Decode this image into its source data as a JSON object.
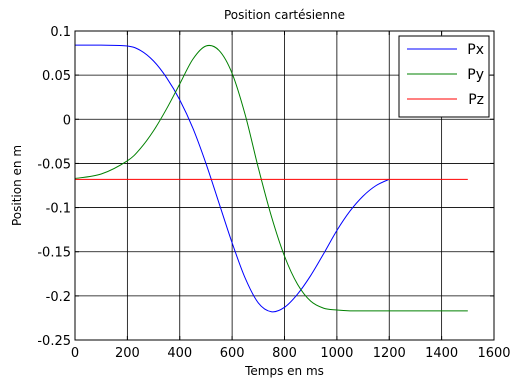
{
  "chart_data": {
    "type": "line",
    "title": "Position cartésienne",
    "xlabel": "Temps en ms",
    "ylabel": "Position en m",
    "xlim": [
      0,
      1600
    ],
    "ylim": [
      -0.25,
      0.1
    ],
    "grid": true,
    "legend_position": "top-right",
    "x_ticks": [
      0,
      200,
      400,
      600,
      800,
      1000,
      1200,
      1400,
      1600
    ],
    "x_tick_labels": [
      "0",
      "200",
      "400",
      "600",
      "800",
      "1000",
      "1200",
      "1400",
      "1600"
    ],
    "y_ticks": [
      0.1,
      0.05,
      0,
      -0.05,
      -0.1,
      -0.15,
      -0.2,
      -0.25
    ],
    "y_tick_labels": [
      "0.1",
      "0.05",
      "0",
      "-0.05",
      "-0.1",
      "-0.15",
      "-0.2",
      "-0.25"
    ],
    "x": [
      0,
      100,
      200,
      250,
      300,
      350,
      400,
      450,
      500,
      550,
      600,
      650,
      700,
      750,
      800,
      850,
      900,
      950,
      1000,
      1050,
      1100,
      1150,
      1200,
      1300,
      1400,
      1500
    ],
    "series": [
      {
        "name": "Px",
        "color": "#0000ff",
        "values": [
          0.084,
          0.084,
          0.083,
          0.078,
          0.066,
          0.047,
          0.022,
          -0.01,
          -0.05,
          -0.095,
          -0.14,
          -0.18,
          -0.208,
          -0.218,
          -0.213,
          -0.198,
          -0.177,
          -0.152,
          -0.126,
          -0.104,
          -0.087,
          -0.075,
          -0.068,
          null,
          null,
          null
        ]
      },
      {
        "name": "Py",
        "color": "#008000",
        "values": [
          -0.067,
          -0.062,
          -0.047,
          -0.033,
          -0.013,
          0.012,
          0.04,
          0.068,
          0.083,
          0.078,
          0.052,
          0.005,
          -0.055,
          -0.11,
          -0.155,
          -0.187,
          -0.206,
          -0.214,
          -0.216,
          -0.217,
          -0.217,
          -0.217,
          -0.217,
          -0.217,
          -0.217,
          -0.217
        ]
      },
      {
        "name": "Pz",
        "color": "#ff0000",
        "values": [
          -0.068,
          -0.068,
          -0.068,
          -0.068,
          -0.068,
          -0.068,
          -0.068,
          -0.068,
          -0.068,
          -0.068,
          -0.068,
          -0.068,
          -0.068,
          -0.068,
          -0.068,
          -0.068,
          -0.068,
          -0.068,
          -0.068,
          -0.068,
          -0.068,
          -0.068,
          -0.068,
          -0.068,
          -0.068,
          -0.068
        ]
      }
    ]
  }
}
